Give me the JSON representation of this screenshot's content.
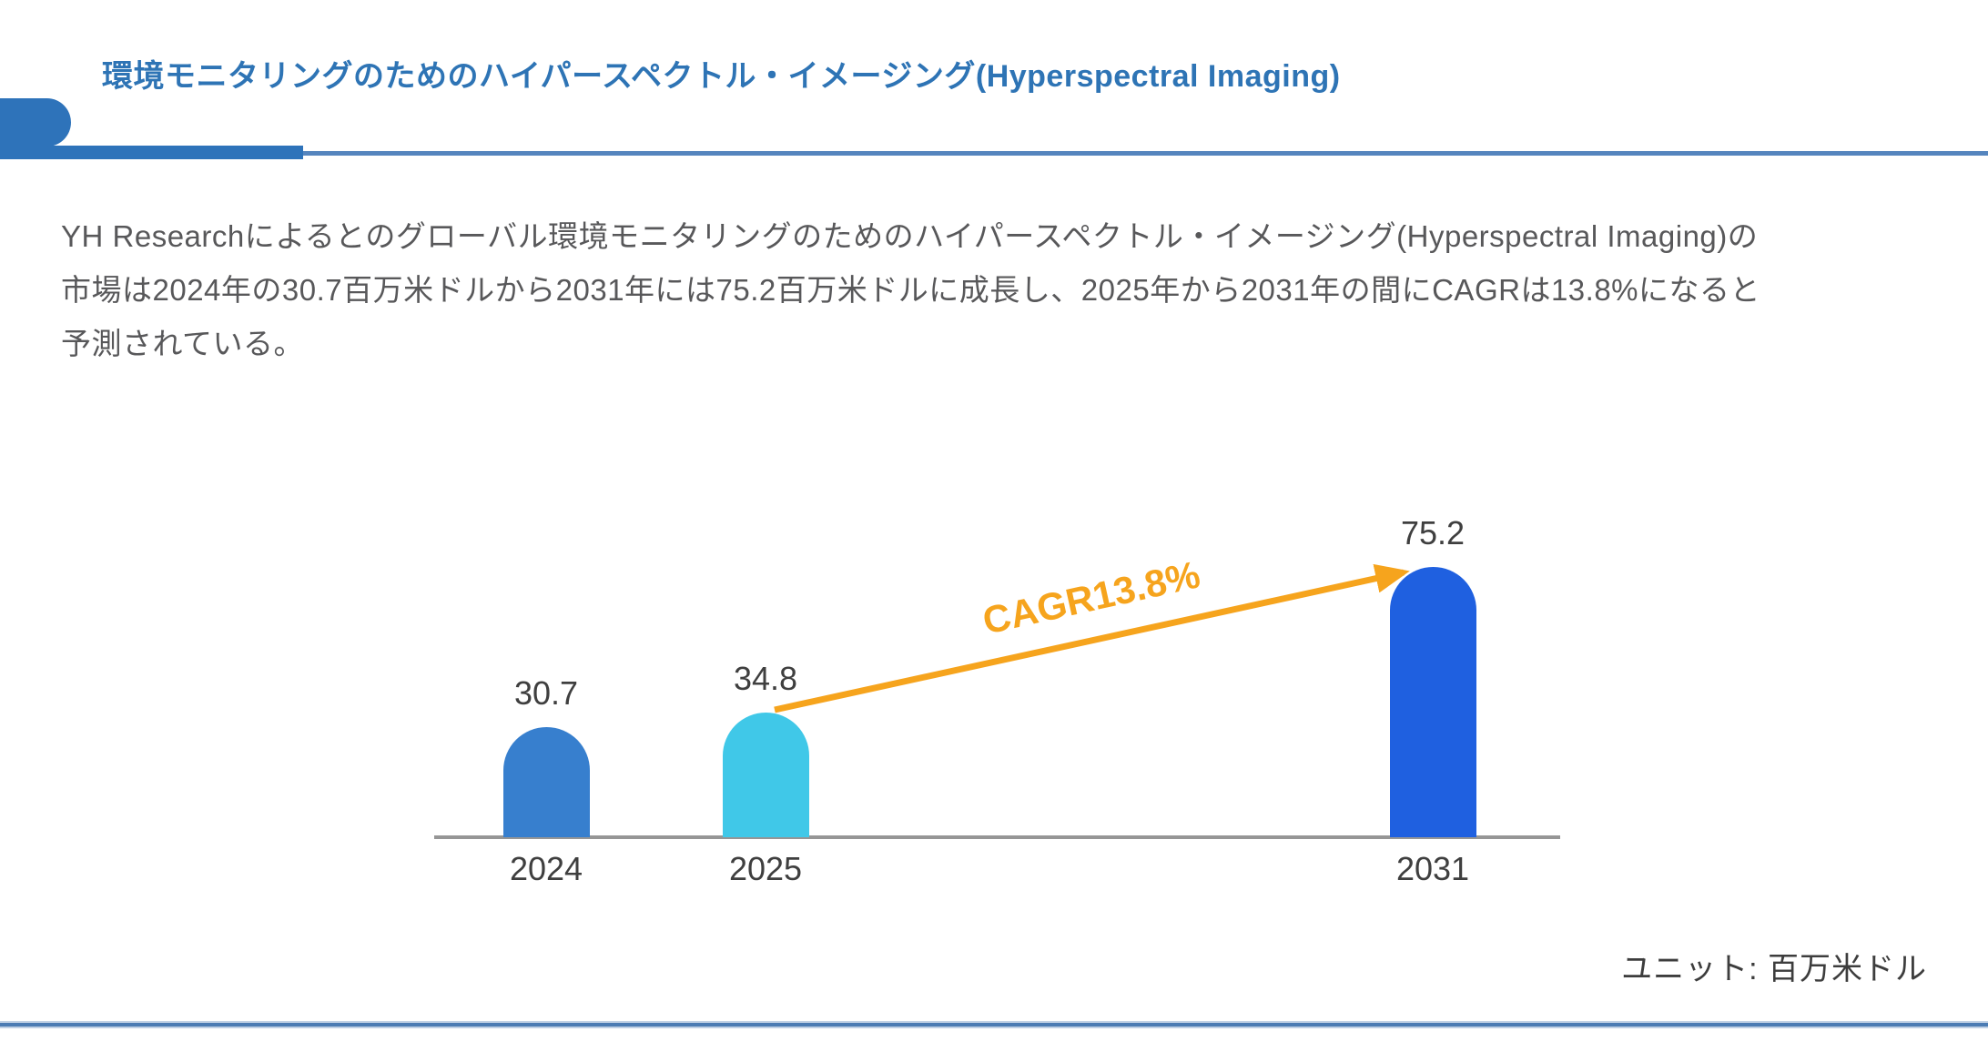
{
  "page": {
    "title": "環境モニタリングのためのハイパースペクトル・イメージング(Hyperspectral Imaging)",
    "paragraph_lines": [
      "YH Researchによるとのグローバル環境モニタリングのためのハイパースペクトル・イメージング(Hyperspectral Imaging)の",
      "市場は2024年の30.7百万米ドルから2031年には75.2百万米ドルに成長し、2025年から2031年の間にCAGRは13.8%になると",
      "予測されている。"
    ],
    "unit_note": "ユニット: 百万米ドル"
  },
  "colors": {
    "title_blue": "#2E74B5",
    "decoration_blue": "#2E73BA",
    "thin_rule_blue": "#5585BE",
    "bottom_rule_blue": "#4C7CB4",
    "axis_gray": "#969696",
    "label_gray": "#3F3F3F",
    "body_text_gray": "#58585A",
    "arrow_orange": "#F6A41D"
  },
  "chart_data": {
    "type": "bar",
    "title": "",
    "categories": [
      "2024",
      "2025",
      "2031"
    ],
    "values": [
      30.7,
      34.8,
      75.2
    ],
    "value_labels": [
      "30.7",
      "34.8",
      "75.2"
    ],
    "bar_colors": [
      "#377FCE",
      "#40C8E8",
      "#1F60E0"
    ],
    "annotation": "CAGR13.8%",
    "annotation_color": "#F6A41D",
    "annotation_arrow": {
      "from_category": "2025",
      "to_category": "2031"
    },
    "unit_label": "ユニット: 百万米ドル",
    "xlabel": "",
    "ylabel": "",
    "ylim": [
      0,
      80
    ],
    "grid": false,
    "legend": false,
    "bar_style": "rounded-top"
  }
}
